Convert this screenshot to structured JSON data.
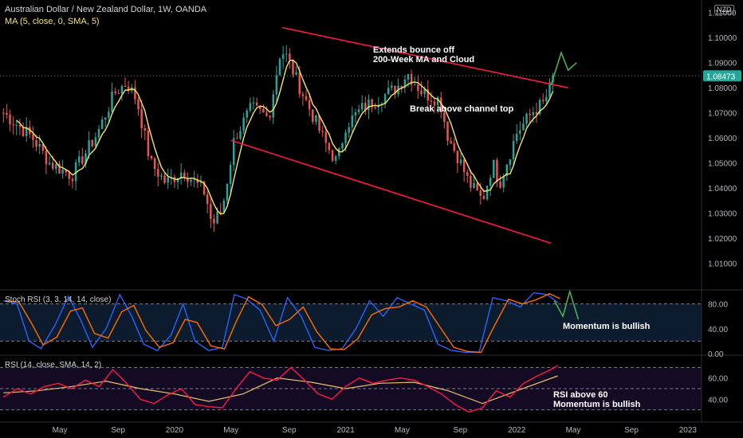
{
  "header": {
    "symbol": "Australian Dollar / New Zealand Dollar, 1W, OANDA",
    "ma_label": "MA (5, close, 0, SMA, 5)",
    "currency_badge": "NZD"
  },
  "annotations": {
    "note1_line1": "Extends bounce off",
    "note1_line2": "200-Week MA and Cloud",
    "note2": "Break above channel top",
    "note3": "Momentum is bullish",
    "note4_line1": "RSI above 60",
    "note4_line2": "Momentum is bullish"
  },
  "colors": {
    "background": "#000000",
    "up_candle": "#26a69a",
    "down_candle": "#ef5350",
    "ma_line": "#f5e663",
    "channel": "#ff1744",
    "projection": "#4caf50",
    "stoch_k": "#2962ff",
    "stoch_d": "#ff6d00",
    "rsi_line": "#ff1744",
    "rsi_ma": "#e8c26a",
    "price_badge": "#26a69a"
  },
  "chart_data": [
    {
      "type": "candlestick",
      "title": "Australian Dollar / New Zealand Dollar, 1W, OANDA",
      "ylim": [
        1.0,
        1.115
      ],
      "y_ticks": [
        "1.11000",
        "1.10000",
        "1.09000",
        "1.08000",
        "1.07000",
        "1.06000",
        "1.05000",
        "1.04000",
        "1.03000",
        "1.02000",
        "1.01000"
      ],
      "y_tick_values": [
        1.11,
        1.1,
        1.09,
        1.08,
        1.07,
        1.06,
        1.05,
        1.04,
        1.03,
        1.02,
        1.01
      ],
      "last_price": 1.08473,
      "last_price_label": "1.08473",
      "x_ticks": [
        "May",
        "Sep",
        "2020",
        "May",
        "Sep",
        "2021",
        "May",
        "Sep",
        "2022",
        "May",
        "Sep",
        "2023"
      ],
      "x_tick_values": [
        2019.33,
        2019.67,
        2020.0,
        2020.33,
        2020.67,
        2021.0,
        2021.33,
        2021.67,
        2022.0,
        2022.33,
        2022.67,
        2023.0
      ],
      "close_anchors": {
        "x": [
          2019.0,
          2019.17,
          2019.27,
          2019.4,
          2019.55,
          2019.65,
          2019.72,
          2019.78,
          2019.86,
          2019.95,
          2020.05,
          2020.18,
          2020.22,
          2020.28,
          2020.35,
          2020.45,
          2020.55,
          2020.62,
          2020.66,
          2020.72,
          2020.8,
          2020.88,
          2020.95,
          2021.0,
          2021.1,
          2021.2,
          2021.3,
          2021.36,
          2021.45,
          2021.55,
          2021.6,
          2021.66,
          2021.72,
          2021.8,
          2021.86,
          2021.9,
          2022.0,
          2022.1,
          2022.16,
          2022.22
        ],
        "close": [
          1.07,
          1.06,
          1.05,
          1.045,
          1.062,
          1.078,
          1.082,
          1.075,
          1.05,
          1.042,
          1.047,
          1.038,
          1.025,
          1.032,
          1.06,
          1.072,
          1.068,
          1.095,
          1.092,
          1.082,
          1.07,
          1.058,
          1.05,
          1.065,
          1.072,
          1.076,
          1.08,
          1.086,
          1.078,
          1.075,
          1.06,
          1.052,
          1.042,
          1.035,
          1.05,
          1.042,
          1.062,
          1.071,
          1.074,
          1.0847
        ]
      },
      "channel_upper": {
        "x": [
          2020.63,
          2022.3
        ],
        "y": [
          1.104,
          1.08
        ]
      },
      "channel_lower": {
        "x": [
          2020.33,
          2022.2
        ],
        "y": [
          1.059,
          1.018
        ]
      },
      "projection": {
        "x": [
          2022.2,
          2022.26,
          2022.3,
          2022.35
        ],
        "y": [
          1.081,
          1.094,
          1.087,
          1.09
        ]
      },
      "ma_period": 5
    },
    {
      "type": "line",
      "title": "Stoch RSI (3, 3, 14, 14, close)",
      "ylim": [
        0,
        100
      ],
      "y_ticks": [
        "80.00",
        "40.00",
        "0.00"
      ],
      "y_tick_values": [
        80,
        40,
        0
      ],
      "bands": [
        80,
        20
      ],
      "series": [
        {
          "name": "K",
          "x": [
            2019.0,
            2019.08,
            2019.15,
            2019.22,
            2019.3,
            2019.38,
            2019.45,
            2019.52,
            2019.6,
            2019.68,
            2019.75,
            2019.82,
            2019.9,
            2019.98,
            2020.05,
            2020.12,
            2020.2,
            2020.28,
            2020.35,
            2020.42,
            2020.5,
            2020.58,
            2020.66,
            2020.74,
            2020.82,
            2020.9,
            2020.98,
            2021.06,
            2021.14,
            2021.22,
            2021.3,
            2021.38,
            2021.46,
            2021.54,
            2021.62,
            2021.7,
            2021.78,
            2021.86,
            2021.94,
            2022.02,
            2022.1,
            2022.18,
            2022.24
          ],
          "values": [
            85,
            80,
            20,
            8,
            45,
            92,
            55,
            10,
            40,
            95,
            60,
            15,
            5,
            30,
            80,
            20,
            5,
            10,
            95,
            88,
            70,
            20,
            90,
            60,
            10,
            5,
            8,
            40,
            85,
            60,
            90,
            80,
            70,
            15,
            5,
            2,
            2,
            90,
            85,
            75,
            98,
            95,
            82
          ]
        }
      ],
      "projection": {
        "x": [
          2022.22,
          2022.27,
          2022.31,
          2022.36
        ],
        "y": [
          85,
          60,
          100,
          55
        ]
      }
    },
    {
      "type": "line",
      "title": "RSI (14, close, SMA, 14, 2)",
      "ylim": [
        20,
        80
      ],
      "y_ticks": [
        "60.00",
        "40.00"
      ],
      "y_tick_values": [
        60,
        40
      ],
      "bands": [
        70,
        50,
        30
      ],
      "series": [
        {
          "name": "RSI",
          "x": [
            2019.0,
            2019.08,
            2019.16,
            2019.24,
            2019.32,
            2019.4,
            2019.48,
            2019.56,
            2019.64,
            2019.72,
            2019.8,
            2019.88,
            2019.96,
            2020.04,
            2020.12,
            2020.2,
            2020.28,
            2020.36,
            2020.44,
            2020.52,
            2020.6,
            2020.68,
            2020.76,
            2020.84,
            2020.92,
            2021.0,
            2021.08,
            2021.16,
            2021.24,
            2021.32,
            2021.4,
            2021.48,
            2021.56,
            2021.64,
            2021.72,
            2021.8,
            2021.88,
            2021.96,
            2022.04,
            2022.12,
            2022.2,
            2022.24
          ],
          "values": [
            42,
            50,
            45,
            52,
            55,
            50,
            58,
            52,
            68,
            55,
            40,
            36,
            44,
            50,
            35,
            33,
            32,
            50,
            66,
            60,
            58,
            70,
            58,
            45,
            40,
            52,
            60,
            55,
            58,
            60,
            58,
            52,
            45,
            35,
            28,
            32,
            48,
            42,
            55,
            62,
            68,
            72
          ]
        },
        {
          "name": "RSI MA",
          "x": [
            2019.0,
            2019.2,
            2019.4,
            2019.6,
            2019.8,
            2020.0,
            2020.2,
            2020.4,
            2020.6,
            2020.8,
            2021.0,
            2021.2,
            2021.4,
            2021.6,
            2021.8,
            2022.0,
            2022.24
          ],
          "values": [
            46,
            48,
            52,
            57,
            50,
            45,
            38,
            45,
            60,
            56,
            50,
            55,
            56,
            48,
            36,
            48,
            62
          ]
        }
      ]
    }
  ]
}
